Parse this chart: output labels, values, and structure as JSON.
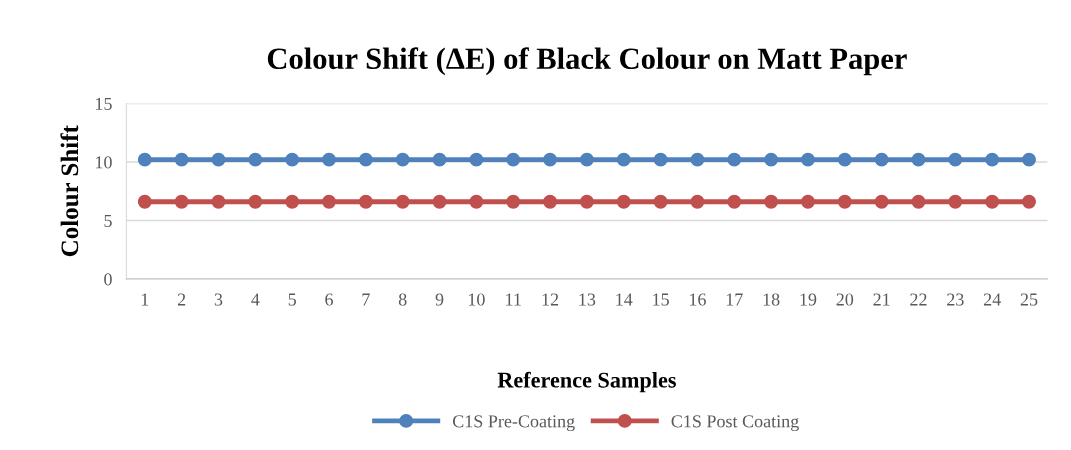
{
  "chart_data": {
    "type": "line",
    "title": "Colour Shift (ΔE) of Black Colour on Matt Paper",
    "xlabel": "Reference Samples",
    "ylabel": "Colour Shift",
    "categories": [
      "1",
      "2",
      "3",
      "4",
      "5",
      "6",
      "7",
      "8",
      "9",
      "10",
      "11",
      "12",
      "13",
      "14",
      "15",
      "16",
      "17",
      "18",
      "19",
      "20",
      "21",
      "22",
      "23",
      "24",
      "25"
    ],
    "series": [
      {
        "name": "C1S Pre-Coating",
        "color": "#4f81bd",
        "values": [
          10.2,
          10.2,
          10.2,
          10.2,
          10.2,
          10.2,
          10.2,
          10.2,
          10.2,
          10.2,
          10.2,
          10.2,
          10.2,
          10.2,
          10.2,
          10.2,
          10.2,
          10.2,
          10.2,
          10.2,
          10.2,
          10.2,
          10.2,
          10.2,
          10.2
        ]
      },
      {
        "name": "C1S Post Coating",
        "color": "#c0504d",
        "values": [
          6.6,
          6.6,
          6.6,
          6.6,
          6.6,
          6.6,
          6.6,
          6.6,
          6.6,
          6.6,
          6.6,
          6.6,
          6.6,
          6.6,
          6.6,
          6.6,
          6.6,
          6.6,
          6.6,
          6.6,
          6.6,
          6.6,
          6.6,
          6.6,
          6.6
        ]
      }
    ],
    "ylim": [
      0,
      15
    ],
    "yticks": [
      0,
      5,
      10,
      15
    ],
    "grid": "y",
    "legend": "bottom",
    "marker": "circle",
    "line_style": "solid"
  }
}
